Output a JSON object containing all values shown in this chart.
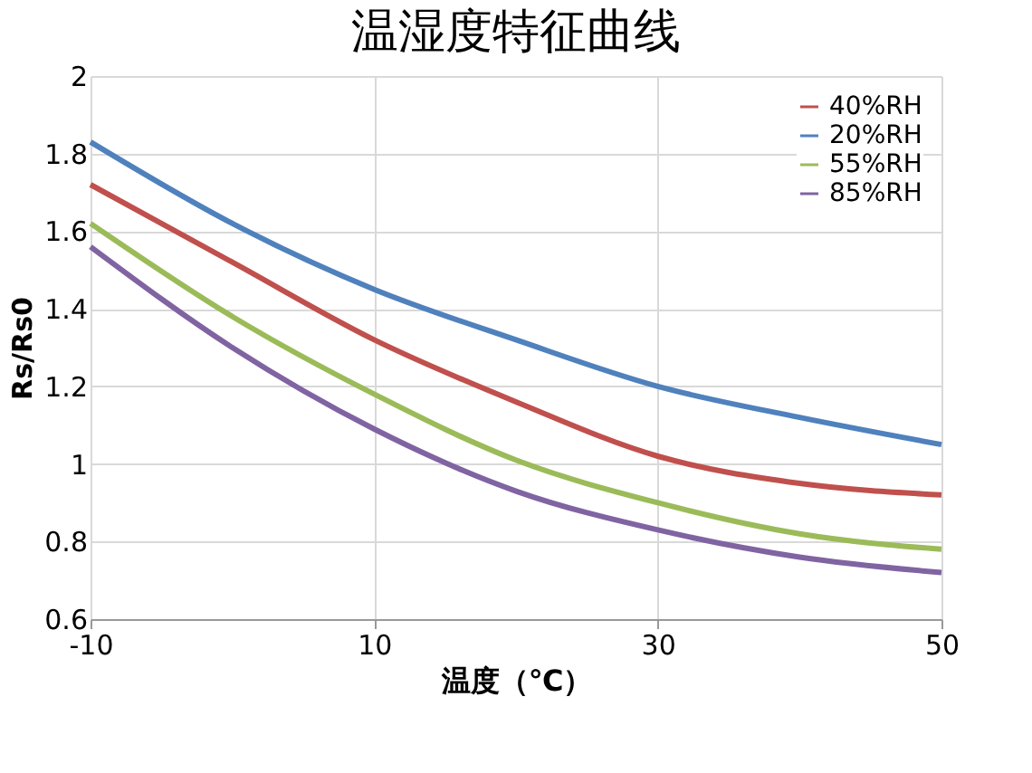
{
  "chart_data": {
    "type": "line",
    "title": "温湿度特征曲线",
    "xlabel": "温度（℃）",
    "ylabel": "Rs/Rs0",
    "x": [
      -10,
      0,
      10,
      20,
      30,
      40,
      50
    ],
    "series": [
      {
        "name": "40%RH",
        "color": "#c0504d",
        "values": [
          1.72,
          1.52,
          1.32,
          1.16,
          1.02,
          0.95,
          0.92
        ]
      },
      {
        "name": "20%RH",
        "color": "#4f81bd",
        "values": [
          1.83,
          1.62,
          1.45,
          1.32,
          1.2,
          1.12,
          1.05
        ]
      },
      {
        "name": "55%RH",
        "color": "#9bbb59",
        "values": [
          1.62,
          1.38,
          1.18,
          1.01,
          0.9,
          0.82,
          0.78
        ]
      },
      {
        "name": "85%RH",
        "color": "#8064a2",
        "values": [
          1.56,
          1.3,
          1.09,
          0.93,
          0.83,
          0.76,
          0.72
        ]
      }
    ],
    "xlim": [
      -10,
      50
    ],
    "xticks": [
      -10,
      10,
      30,
      50
    ],
    "ylim": [
      0.6,
      2
    ],
    "yticks": [
      0.6,
      0.8,
      1,
      1.2,
      1.4,
      1.6,
      1.8,
      2
    ],
    "grid": true,
    "legend": "top right",
    "marker": "none",
    "line_style": "solid"
  }
}
